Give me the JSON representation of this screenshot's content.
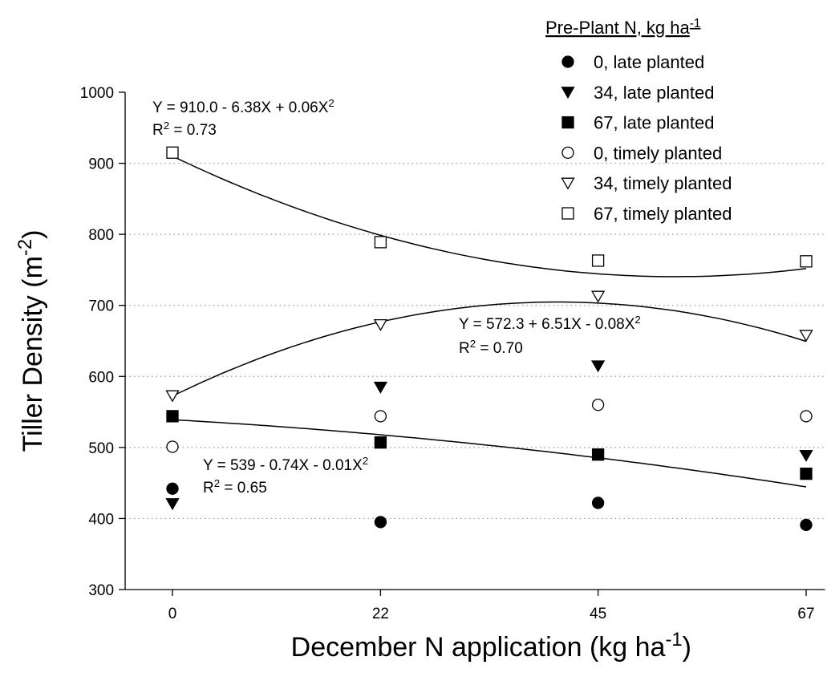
{
  "chart_data": {
    "type": "scatter",
    "xlabel": {
      "text": "December N application (kg ha",
      "sup": "-1",
      "after": ")"
    },
    "ylabel": {
      "text": "Tiller Density (m",
      "sup": "-2",
      "after": ")"
    },
    "legend_title": {
      "text": "Pre-Plant N, kg ha",
      "sup": "-1"
    },
    "x": [
      0,
      22,
      45,
      67
    ],
    "xlim": [
      -5,
      69
    ],
    "xticks": [
      0,
      22,
      45,
      67
    ],
    "ylim": [
      300,
      1000
    ],
    "yticks": [
      300,
      400,
      500,
      600,
      700,
      800,
      900,
      1000
    ],
    "grid": true,
    "series": [
      {
        "name": "0, late planted",
        "color": "#000000",
        "marker": "circle",
        "filled": true,
        "values": [
          442,
          395,
          422,
          391
        ]
      },
      {
        "name": "34, late planted",
        "color": "#000000",
        "marker": "triangle-down",
        "filled": true,
        "values": [
          421,
          585,
          615,
          489
        ]
      },
      {
        "name": "67, late planted",
        "color": "#000000",
        "marker": "square",
        "filled": true,
        "values": [
          544,
          507,
          490,
          463
        ]
      },
      {
        "name": "0, timely planted",
        "color": "#000000",
        "marker": "circle",
        "filled": false,
        "values": [
          501,
          544,
          560,
          544
        ]
      },
      {
        "name": "34, timely planted",
        "color": "#000000",
        "marker": "triangle-down",
        "filled": false,
        "values": [
          573,
          673,
          713,
          658
        ]
      },
      {
        "name": "67, timely planted",
        "color": "#000000",
        "marker": "square",
        "filled": false,
        "values": [
          915,
          789,
          763,
          762
        ]
      }
    ],
    "fits": [
      {
        "coef": [
          910.0,
          -6.38,
          0.06
        ],
        "equation": {
          "text": "Y = 910.0 - 6.38X + 0.06X",
          "sup": "2"
        },
        "r2": {
          "text": "R",
          "sup": "2",
          "after": " = 0.73"
        }
      },
      {
        "coef": [
          572.3,
          6.51,
          -0.08
        ],
        "equation": {
          "text": "Y = 572.3 + 6.51X - 0.08X",
          "sup": "2"
        },
        "r2": {
          "text": "R",
          "sup": "2",
          "after": " = 0.70"
        }
      },
      {
        "coef": [
          539,
          -0.74,
          -0.01
        ],
        "equation": {
          "text": "Y = 539 - 0.74X - 0.01X",
          "sup": "2"
        },
        "r2": {
          "text": "R",
          "sup": "2",
          "after": " = 0.65"
        }
      }
    ]
  }
}
